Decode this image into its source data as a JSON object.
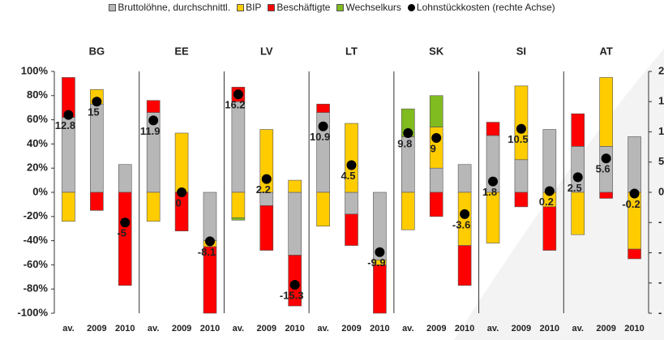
{
  "chart_data": {
    "type": "bar",
    "groups": [
      "BG",
      "EE",
      "LV",
      "LT",
      "SK",
      "SI",
      "AT"
    ],
    "categories": [
      "av.",
      "2009",
      "2010",
      "av.",
      "2009",
      "2010",
      "av.",
      "2009",
      "2010",
      "av.",
      "2009",
      "2010",
      "av.",
      "2009",
      "2010",
      "av.",
      "2009",
      "2010",
      "av.",
      "2009",
      "2010"
    ],
    "series": [
      {
        "name": "Bruttolöhne, durchschnittl.",
        "color": "#b7b7b7",
        "values": [
          62,
          73,
          23,
          66,
          0,
          -40,
          75,
          -11,
          -52,
          66,
          -18,
          -56,
          46,
          20,
          23,
          47,
          27,
          52,
          38,
          38,
          46
        ]
      },
      {
        "name": "BIP",
        "color": "#ffcc00",
        "values": [
          -24,
          12,
          0,
          -24,
          49,
          -5,
          -21,
          52,
          10,
          -28,
          57,
          -4,
          -31,
          34,
          -44,
          -42,
          61,
          -12,
          -35,
          57,
          -47
        ]
      },
      {
        "name": "Beschäftigte",
        "color": "#ff0000",
        "values": [
          33,
          -15,
          -77,
          10,
          -32,
          -55,
          12,
          -37,
          -42,
          7,
          -26,
          -40,
          0,
          -20,
          -33,
          11,
          -12,
          -36,
          27,
          -5,
          -8
        ]
      },
      {
        "name": "Wechselkurs",
        "color": "#80bb1f",
        "values": [
          0,
          0,
          0,
          0,
          0,
          0,
          -2,
          0,
          0,
          0,
          0,
          0,
          23,
          26,
          0,
          0,
          0,
          0,
          0,
          0,
          0
        ]
      },
      {
        "name": "Lohnstückkosten (rechte Achse)",
        "color": "#000000",
        "type": "scatter",
        "axis": "y2",
        "values": [
          12.8,
          15,
          -5,
          11.9,
          0,
          -8.1,
          16.2,
          2.2,
          -15.3,
          10.9,
          4.5,
          -9.9,
          9.8,
          9,
          -3.6,
          1.8,
          10.5,
          0.2,
          2.5,
          5.6,
          -0.2
        ]
      }
    ],
    "ylim": [
      -100,
      100
    ],
    "yticks": [
      {
        "value": 100,
        "label": "100%"
      },
      {
        "value": 80,
        "label": "80%"
      },
      {
        "value": 60,
        "label": "60%"
      },
      {
        "value": 40,
        "label": "40%"
      },
      {
        "value": 20,
        "label": "20%"
      },
      {
        "value": 0,
        "label": "0%"
      },
      {
        "value": -20,
        "label": "-20%"
      },
      {
        "value": -40,
        "label": "-40%"
      },
      {
        "value": -60,
        "label": "-60%"
      },
      {
        "value": -80,
        "label": "-80%"
      },
      {
        "value": -100,
        "label": "-100%"
      }
    ],
    "y2lim": [
      -20,
      20
    ],
    "y2ticks": [
      {
        "value": 20,
        "label": "2"
      },
      {
        "value": 15,
        "label": "1"
      },
      {
        "value": 10,
        "label": "1"
      },
      {
        "value": 5,
        "label": "5"
      },
      0,
      {
        "value": -5,
        "label": "-"
      },
      {
        "value": -10,
        "label": "-"
      },
      {
        "value": -15,
        "label": "-"
      },
      {
        "value": -20,
        "label": "-"
      }
    ]
  }
}
